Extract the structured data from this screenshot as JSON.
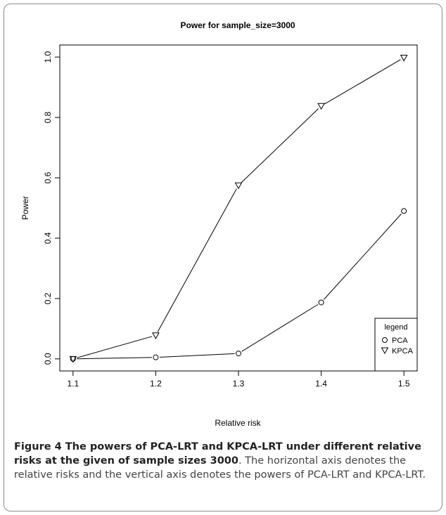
{
  "chart_data": {
    "type": "line",
    "title": "Power for sample_size=3000",
    "xlabel": "Relative risk",
    "ylabel": "Power",
    "x": [
      1.1,
      1.2,
      1.3,
      1.4,
      1.5
    ],
    "xlim": [
      1.084,
      1.516
    ],
    "ylim": [
      -0.04,
      1.04
    ],
    "x_ticks": [
      "1.1",
      "1.2",
      "1.3",
      "1.4",
      "1.5"
    ],
    "y_ticks": [
      "0.0",
      "0.2",
      "0.4",
      "0.6",
      "0.8",
      "1.0"
    ],
    "grid": false,
    "legend": {
      "title": "legend",
      "position": "bottom-right"
    },
    "series": [
      {
        "name": "PCA",
        "marker": "circle",
        "values": [
          0.0,
          0.005,
          0.018,
          0.187,
          0.49
        ]
      },
      {
        "name": "KPCA",
        "marker": "triangle-down",
        "values": [
          0.0,
          0.078,
          0.575,
          0.838,
          0.998
        ]
      }
    ]
  },
  "caption": {
    "bold": "Figure 4 The powers of PCA-LRT and KPCA-LRT under different relative risks at the given of sample sizes 3000",
    "text": ". The horizontal axis denotes the relative risks and the vertical axis denotes the powers of PCA-LRT and KPCA-LRT."
  }
}
